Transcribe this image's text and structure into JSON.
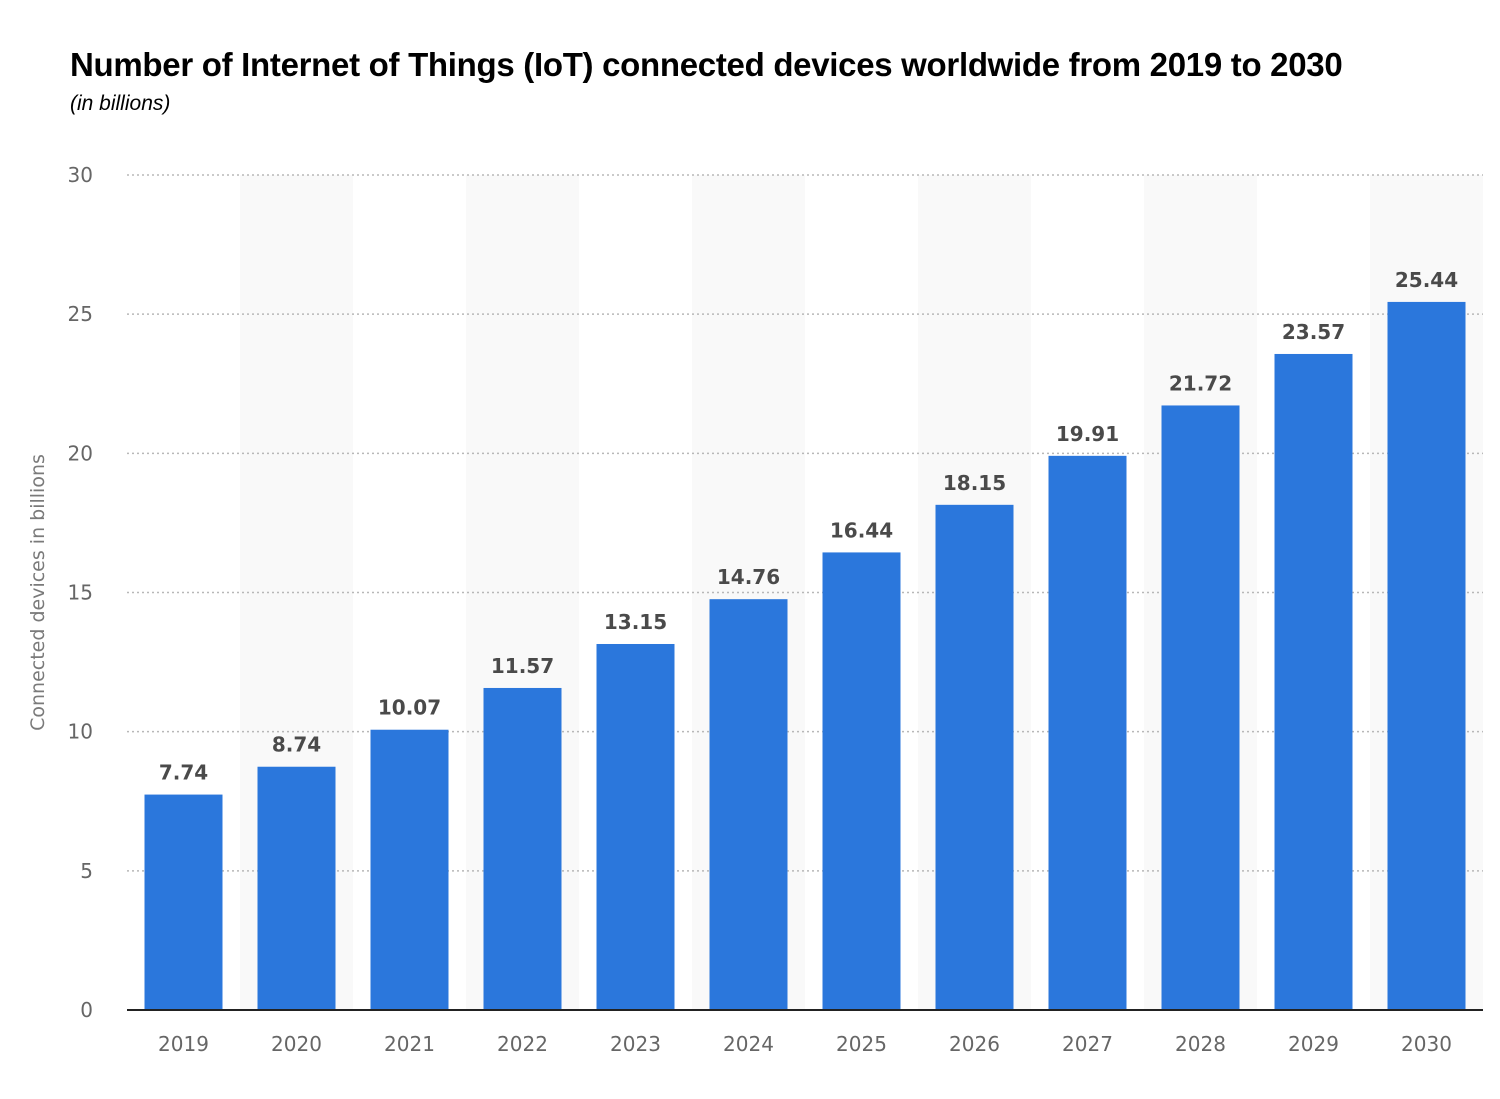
{
  "chart_data": {
    "type": "bar",
    "title": "Number of Internet of Things (IoT) connected devices worldwide from 2019 to 2030",
    "subtitle": "(in billions)",
    "xlabel": "",
    "ylabel": "Connected devices in billions",
    "categories": [
      "2019",
      "2020",
      "2021",
      "2022",
      "2023",
      "2024",
      "2025",
      "2026",
      "2027",
      "2028",
      "2029",
      "2030"
    ],
    "values": [
      7.74,
      8.74,
      10.07,
      11.57,
      13.15,
      14.76,
      16.44,
      18.15,
      19.91,
      21.72,
      23.57,
      25.44
    ],
    "value_labels": [
      "7.74",
      "8.74",
      "10.07",
      "11.57",
      "13.15",
      "14.76",
      "16.44",
      "18.15",
      "19.91",
      "21.72",
      "23.57",
      "25.44"
    ],
    "yticks": [
      "0",
      "5",
      "10",
      "15",
      "20",
      "25",
      "30"
    ],
    "ylim": [
      0,
      30
    ],
    "grid": true,
    "legend": "none",
    "bar_color": "#2b77dc",
    "band_color": "#f9f9f9"
  }
}
